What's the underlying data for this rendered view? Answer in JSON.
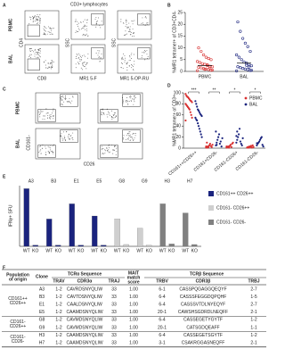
{
  "panel_labels": [
    "A",
    "B",
    "C",
    "D",
    "E",
    "F"
  ],
  "flow_a": {
    "title": "CD3+ lymphocytes",
    "rows": [
      "PBMC",
      "BAL"
    ],
    "x_labels": [
      "CD8",
      "MR1 5-F",
      "MR1 5-OP-RU"
    ],
    "y_labels": [
      "CD4",
      "SSC",
      "SSC"
    ]
  },
  "flow_c": {
    "rows": [
      "PBMC",
      "BAL"
    ],
    "x_label": "CD26",
    "y_label": "CD161-"
  },
  "chart_data": [
    {
      "type": "strip",
      "ylabel": "%MR1 tetramer+ of CD3+CD4-",
      "categories": [
        "PBMC",
        "BAL"
      ],
      "ylim": [
        0,
        25
      ],
      "yticks": [
        0,
        5,
        10,
        15,
        20,
        25
      ],
      "series": [
        {
          "name": "PBMC",
          "color": "#d83030",
          "mean": 2.5,
          "values": [
            0.3,
            0.5,
            0.8,
            1,
            1.2,
            1.5,
            1.8,
            2,
            2.2,
            2.5,
            3,
            3.3,
            3.8,
            4.2,
            5,
            5.5,
            6,
            7,
            8.5,
            10,
            0.6,
            1.4,
            2.8,
            0.9
          ]
        },
        {
          "name": "BAL",
          "color": "#1a237e",
          "mean": 3.5,
          "values": [
            0.2,
            0.4,
            0.7,
            1,
            1.3,
            1.6,
            2,
            2.4,
            3,
            3.5,
            4,
            5,
            6,
            7,
            8.5,
            10.5,
            12,
            14,
            17,
            21,
            0.5,
            1.8,
            2.6
          ]
        }
      ]
    },
    {
      "type": "grouped-strip",
      "ylabel": "%MR1 tetramer+ of CD3+",
      "categories": [
        "CD161++CD26++",
        "CD161+CD26-",
        "CD161-CD26+",
        "CD161-CD26-"
      ],
      "ylim": [
        0,
        100
      ],
      "yticks": [
        0,
        20,
        40,
        60,
        80,
        100
      ],
      "significance": [
        "***",
        "**",
        "*",
        "*"
      ],
      "legend": "top-right",
      "series": [
        {
          "name": "PBMC",
          "color": "#d83030",
          "values": [
            [
              98,
              95,
              93,
              92,
              90,
              88,
              86,
              85,
              83,
              80,
              78,
              76,
              74,
              72,
              70,
              65,
              60,
              55,
              50
            ],
            [
              1,
              2,
              3,
              2,
              5,
              8,
              4,
              2,
              6,
              3,
              10,
              1
            ],
            [
              1,
              2,
              3,
              1,
              4,
              6,
              2,
              8,
              10,
              3
            ],
            [
              1,
              2,
              1,
              3,
              2,
              4,
              1,
              5,
              2
            ]
          ]
        },
        {
          "name": "BAL",
          "color": "#1a237e",
          "values": [
            [
              85,
              80,
              75,
              70,
              68,
              65,
              62,
              60,
              58,
              55,
              52,
              50,
              45,
              40,
              35,
              30,
              25,
              20
            ],
            [
              5,
              10,
              15,
              20,
              25,
              8,
              12,
              3,
              18,
              30,
              6
            ],
            [
              10,
              15,
              20,
              25,
              35,
              12,
              8,
              5,
              18,
              22,
              30
            ],
            [
              5,
              8,
              10,
              12,
              15,
              18,
              20,
              6,
              3,
              9
            ]
          ]
        }
      ]
    },
    {
      "type": "paired-bar",
      "ylabel": "IFNγ+ SFU",
      "categories": [
        "A3",
        "B3",
        "E1",
        "E5",
        "G8",
        "G9",
        "H3",
        "H7"
      ],
      "bar_labels": [
        "WT",
        "KO"
      ],
      "ylim": [
        0,
        100
      ],
      "legend": "right",
      "series": [
        {
          "name": "CD161++ CD26++",
          "color": "#1a237e",
          "values": [
            [
              95,
              2
            ],
            [
              45,
              2
            ],
            [
              70,
              2
            ],
            [
              50,
              2
            ],
            null,
            null,
            null,
            null
          ]
        },
        {
          "name": "CD161- CD26++",
          "color": "#cfcfcf",
          "values": [
            null,
            null,
            null,
            null,
            [
              45,
              3
            ],
            [
              30,
              2
            ],
            null,
            null
          ]
        },
        {
          "name": "CD161- CD26-",
          "color": "#808080",
          "values": [
            null,
            null,
            null,
            null,
            null,
            null,
            [
              70,
              4
            ],
            [
              55,
              3
            ]
          ]
        }
      ]
    }
  ],
  "table": {
    "headers": {
      "population": [
        "Population",
        "of origin"
      ],
      "clone": "Clone",
      "tcra": "TCRα Sequence",
      "mait": [
        "MAIT",
        "match",
        "score"
      ],
      "tcrb": "TCRβ Sequence",
      "sub": [
        "TRAV",
        "CDR3α",
        "TRAJ",
        "TRBV",
        "CDR3β",
        "TRBJ"
      ]
    },
    "groups": [
      {
        "population": [
          "CD161++",
          "CD26++"
        ],
        "rows": [
          [
            "A3",
            "1-2",
            "CAVRDSNYQLIW",
            "33",
            "1.00",
            "6-1",
            "CASSPQGAGGQEQYF",
            "2-7"
          ],
          [
            "B3",
            "1-2",
            "CAVTDSNYQLIW",
            "33",
            "1.00",
            "6-4",
            "CASSSFEGGDQPQHF",
            "1-5"
          ],
          [
            "E1",
            "1-2",
            "CAALDSNYQLIW",
            "33",
            "1.00",
            "6-4",
            "CASSSVTDLNYEQYF",
            "2-7"
          ],
          [
            "E5",
            "1-2",
            "CAAMDSNYQLIW",
            "33",
            "1.00",
            "20-1",
            "CAWSHSGDRDLNEQFF",
            "2-1"
          ]
        ]
      },
      {
        "population": [
          "CD161-",
          "CD26++"
        ],
        "rows": [
          [
            "G8",
            "1-2",
            "CAVMDSNYQLIW",
            "33",
            "1.00",
            "6-4",
            "CASSEGETYGYTF",
            "1-2"
          ],
          [
            "G9",
            "1-2",
            "CAVMDSNYQLIW",
            "33",
            "1.00",
            "20-1",
            "CATSGDQEAFF",
            "1-1"
          ]
        ]
      },
      {
        "population": [
          "CD161-",
          "CD26-"
        ],
        "rows": [
          [
            "H3",
            "1-2",
            "CAAMDSNYQLIW",
            "33",
            "1.00",
            "6-4",
            "CASSEGETSGYTF",
            "1-2"
          ],
          [
            "H7",
            "1-2",
            "CAAMDSNYQLIW",
            "33",
            "1.00",
            "3-1",
            "CSAKRGGASNEQFF",
            "2-1"
          ]
        ]
      }
    ]
  }
}
